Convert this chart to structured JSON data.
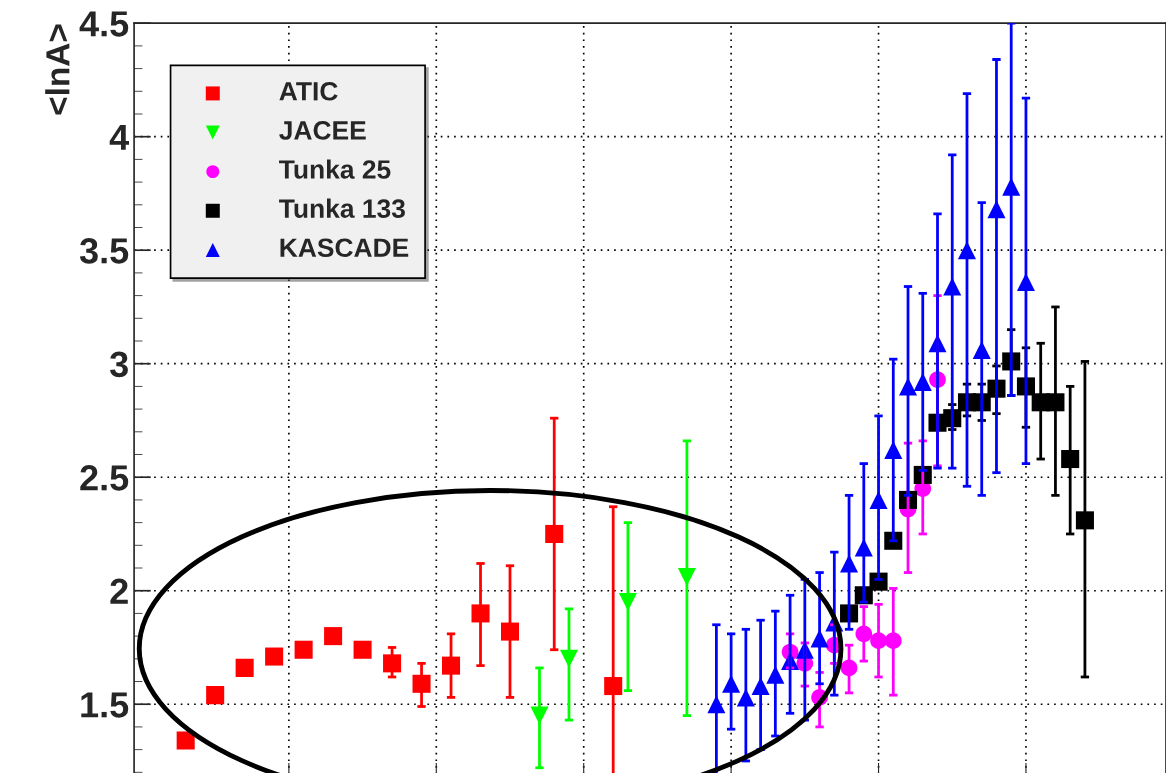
{
  "chart_data": {
    "type": "scatter",
    "ylabel": "<lnA>",
    "categories": [
      null,
      null,
      null,
      null,
      null,
      null,
      null,
      null,
      null,
      null,
      null,
      null,
      null,
      null,
      null,
      null,
      null,
      null,
      null,
      null,
      null,
      null,
      null,
      null,
      null,
      null,
      null,
      null,
      null,
      null,
      null,
      null,
      null,
      null,
      null,
      null,
      null,
      null,
      null,
      null,
      null,
      null,
      null,
      null,
      null,
      null,
      null,
      null,
      null,
      null,
      null,
      null,
      null,
      null,
      null,
      null,
      null,
      null,
      null,
      null,
      null,
      null,
      null,
      null,
      null,
      null,
      null,
      null,
      null,
      null
    ],
    "ylim": [
      1.18,
      4.5
    ],
    "yticks": [
      1.5,
      2,
      2.5,
      3,
      3.5,
      4,
      4.5
    ],
    "tick_labels": "y",
    "grid": true,
    "legend": "top left",
    "series": [
      {
        "name": "ATIC",
        "color": "#ff0000",
        "marker": "square",
        "values": [
          null,
          null,
          null,
          1.34,
          null,
          1.54,
          null,
          1.66,
          null,
          1.71,
          null,
          1.74,
          null,
          1.8,
          null,
          1.74,
          null,
          1.68,
          null,
          1.59,
          null,
          1.67,
          null,
          1.9,
          null,
          1.82,
          null,
          null,
          2.25,
          null,
          null,
          null,
          1.58,
          null,
          null,
          null,
          null,
          null,
          null,
          null,
          null,
          null,
          null,
          null,
          null,
          null,
          null,
          null,
          null,
          null,
          null,
          null,
          null,
          null,
          null,
          null,
          null,
          null,
          null,
          null,
          null,
          null,
          null,
          null,
          null,
          null,
          null,
          null,
          null,
          null
        ],
        "errors": [
          null,
          null,
          null,
          null,
          null,
          null,
          null,
          null,
          null,
          null,
          null,
          null,
          null,
          null,
          null,
          null,
          null,
          [
            1.62,
            1.75
          ],
          null,
          [
            1.49,
            1.68
          ],
          null,
          [
            1.53,
            1.81
          ],
          null,
          [
            1.67,
            2.12
          ],
          null,
          [
            1.53,
            2.11
          ],
          null,
          null,
          [
            1.74,
            2.76
          ],
          null,
          null,
          null,
          [
            1.18,
            2.37
          ],
          null,
          null,
          null,
          null,
          null,
          null,
          null,
          null,
          null,
          null,
          null,
          null,
          null,
          null,
          null,
          null,
          null,
          null,
          null,
          null,
          null,
          null,
          null,
          null,
          null,
          null,
          null,
          null,
          null,
          null,
          null,
          null,
          null,
          null,
          null,
          null,
          null
        ]
      },
      {
        "name": "JACEE",
        "color": "#00ff00",
        "marker": "triangle_down",
        "values": [
          null,
          null,
          null,
          null,
          null,
          null,
          null,
          null,
          null,
          null,
          null,
          null,
          null,
          null,
          null,
          null,
          null,
          null,
          null,
          null,
          null,
          null,
          null,
          null,
          null,
          null,
          null,
          1.45,
          null,
          1.7,
          null,
          null,
          null,
          1.95,
          null,
          null,
          null,
          2.06,
          null,
          null,
          null,
          null,
          null,
          null,
          null,
          null,
          null,
          null,
          null,
          null,
          null,
          null,
          null,
          null,
          null,
          null,
          null,
          null,
          null,
          null,
          null,
          null,
          null,
          null,
          null,
          null,
          null,
          null,
          null,
          null
        ],
        "errors": [
          null,
          null,
          null,
          null,
          null,
          null,
          null,
          null,
          null,
          null,
          null,
          null,
          null,
          null,
          null,
          null,
          null,
          null,
          null,
          null,
          null,
          null,
          null,
          null,
          null,
          null,
          null,
          [
            1.22,
            1.66
          ],
          null,
          [
            1.43,
            1.92
          ],
          null,
          null,
          null,
          [
            1.56,
            2.3
          ],
          null,
          null,
          null,
          [
            1.45,
            2.66
          ],
          null,
          null,
          null,
          null,
          null,
          null,
          null,
          null,
          null,
          null,
          null,
          null,
          null,
          null,
          null,
          null,
          null,
          null,
          null,
          null,
          null,
          null,
          null,
          null,
          null,
          null,
          null,
          null,
          null,
          null,
          null,
          null
        ]
      },
      {
        "name": "Tunka 25",
        "color": "#ff00ff",
        "marker": "circle",
        "values": [
          null,
          null,
          null,
          null,
          null,
          null,
          null,
          null,
          null,
          null,
          null,
          null,
          null,
          null,
          null,
          null,
          null,
          null,
          null,
          null,
          null,
          null,
          null,
          null,
          null,
          null,
          null,
          null,
          null,
          null,
          null,
          null,
          null,
          null,
          null,
          null,
          null,
          null,
          null,
          null,
          null,
          null,
          null,
          null,
          1.73,
          1.68,
          1.53,
          1.76,
          1.66,
          1.81,
          1.78,
          1.78,
          2.36,
          2.45,
          2.93,
          null,
          null,
          null,
          null,
          null,
          null,
          null,
          null,
          null,
          null,
          null,
          null,
          null,
          null,
          null
        ],
        "errors": [
          null,
          null,
          null,
          null,
          null,
          null,
          null,
          null,
          null,
          null,
          null,
          null,
          null,
          null,
          null,
          null,
          null,
          null,
          null,
          null,
          null,
          null,
          null,
          null,
          null,
          null,
          null,
          null,
          null,
          null,
          null,
          null,
          null,
          null,
          null,
          null,
          null,
          null,
          null,
          null,
          null,
          null,
          null,
          null,
          [
            1.66,
            1.81
          ],
          [
            1.58,
            1.77
          ],
          [
            1.4,
            1.64
          ],
          [
            1.68,
            1.85
          ],
          [
            1.55,
            1.76
          ],
          [
            1.69,
            1.93
          ],
          [
            1.62,
            1.94
          ],
          [
            1.54,
            2.01
          ],
          [
            2.08,
            2.65
          ],
          [
            2.25,
            2.66
          ],
          [
            2.55,
            3.3
          ],
          null,
          null,
          null,
          null,
          null,
          null,
          null,
          null,
          null,
          null,
          null,
          null,
          null,
          null,
          null
        ]
      },
      {
        "name": "Tunka 133",
        "color": "#000000",
        "marker": "square",
        "values": [
          null,
          null,
          null,
          null,
          null,
          null,
          null,
          null,
          null,
          null,
          null,
          null,
          null,
          null,
          null,
          null,
          null,
          null,
          null,
          null,
          null,
          null,
          null,
          null,
          null,
          null,
          null,
          null,
          null,
          null,
          null,
          null,
          null,
          null,
          null,
          null,
          null,
          null,
          null,
          null,
          null,
          null,
          null,
          null,
          null,
          null,
          null,
          null,
          1.9,
          1.98,
          2.04,
          2.22,
          2.4,
          2.51,
          2.74,
          2.76,
          2.83,
          2.83,
          2.89,
          3.01,
          2.9,
          2.83,
          2.83,
          2.58,
          2.31,
          null,
          null,
          null,
          null,
          null
        ],
        "errors": [
          null,
          null,
          null,
          null,
          null,
          null,
          null,
          null,
          null,
          null,
          null,
          null,
          null,
          null,
          null,
          null,
          null,
          null,
          null,
          null,
          null,
          null,
          null,
          null,
          null,
          null,
          null,
          null,
          null,
          null,
          null,
          null,
          null,
          null,
          null,
          null,
          null,
          null,
          null,
          null,
          null,
          null,
          null,
          null,
          null,
          null,
          null,
          null,
          null,
          null,
          null,
          null,
          null,
          null,
          null,
          [
            2.71,
            2.82
          ],
          [
            2.77,
            2.91
          ],
          [
            2.75,
            2.91
          ],
          [
            2.78,
            2.99
          ],
          [
            2.86,
            3.15
          ],
          [
            2.72,
            3.07
          ],
          [
            2.58,
            3.09
          ],
          [
            2.42,
            3.25
          ],
          [
            2.25,
            2.9
          ],
          [
            1.62,
            3.01
          ],
          null,
          null,
          null,
          null,
          null
        ]
      },
      {
        "name": "KASCADE",
        "color": "#0000ff",
        "marker": "triangle",
        "values": [
          null,
          null,
          null,
          null,
          null,
          null,
          null,
          null,
          null,
          null,
          null,
          null,
          null,
          null,
          null,
          null,
          null,
          null,
          null,
          null,
          null,
          null,
          null,
          null,
          null,
          null,
          null,
          null,
          null,
          null,
          null,
          null,
          null,
          null,
          null,
          null,
          null,
          null,
          null,
          1.5,
          1.59,
          1.53,
          1.58,
          1.63,
          1.69,
          1.74,
          1.79,
          1.86,
          2.12,
          2.19,
          2.4,
          2.62,
          2.9,
          2.92,
          3.09,
          3.34,
          3.5,
          3.06,
          3.68,
          3.78,
          3.36,
          null,
          null,
          null,
          null,
          null,
          null,
          null,
          null,
          null
        ],
        "errors": [
          null,
          null,
          null,
          null,
          null,
          null,
          null,
          null,
          null,
          null,
          null,
          null,
          null,
          null,
          null,
          null,
          null,
          null,
          null,
          null,
          null,
          null,
          null,
          null,
          null,
          null,
          null,
          null,
          null,
          null,
          null,
          null,
          null,
          null,
          null,
          null,
          null,
          null,
          null,
          [
            1.18,
            1.85
          ],
          [
            1.39,
            1.81
          ],
          [
            1.25,
            1.83
          ],
          [
            1.3,
            1.87
          ],
          [
            1.36,
            1.91
          ],
          [
            1.46,
            1.98
          ],
          [
            1.43,
            2.05
          ],
          [
            1.59,
            2.08
          ],
          [
            1.54,
            2.17
          ],
          [
            1.83,
            2.42
          ],
          [
            1.95,
            2.56
          ],
          [
            2.05,
            2.77
          ],
          [
            2.22,
            3.02
          ],
          [
            2.42,
            3.34
          ],
          [
            2.53,
            3.31
          ],
          [
            2.54,
            3.66
          ],
          [
            2.54,
            3.92
          ],
          [
            2.46,
            4.19
          ],
          [
            2.42,
            3.71
          ],
          [
            2.52,
            4.34
          ],
          [
            2.86,
            4.5
          ],
          [
            2.56,
            4.17
          ],
          null,
          null,
          null,
          null,
          null,
          null,
          null,
          null,
          null
        ]
      }
    ]
  }
}
